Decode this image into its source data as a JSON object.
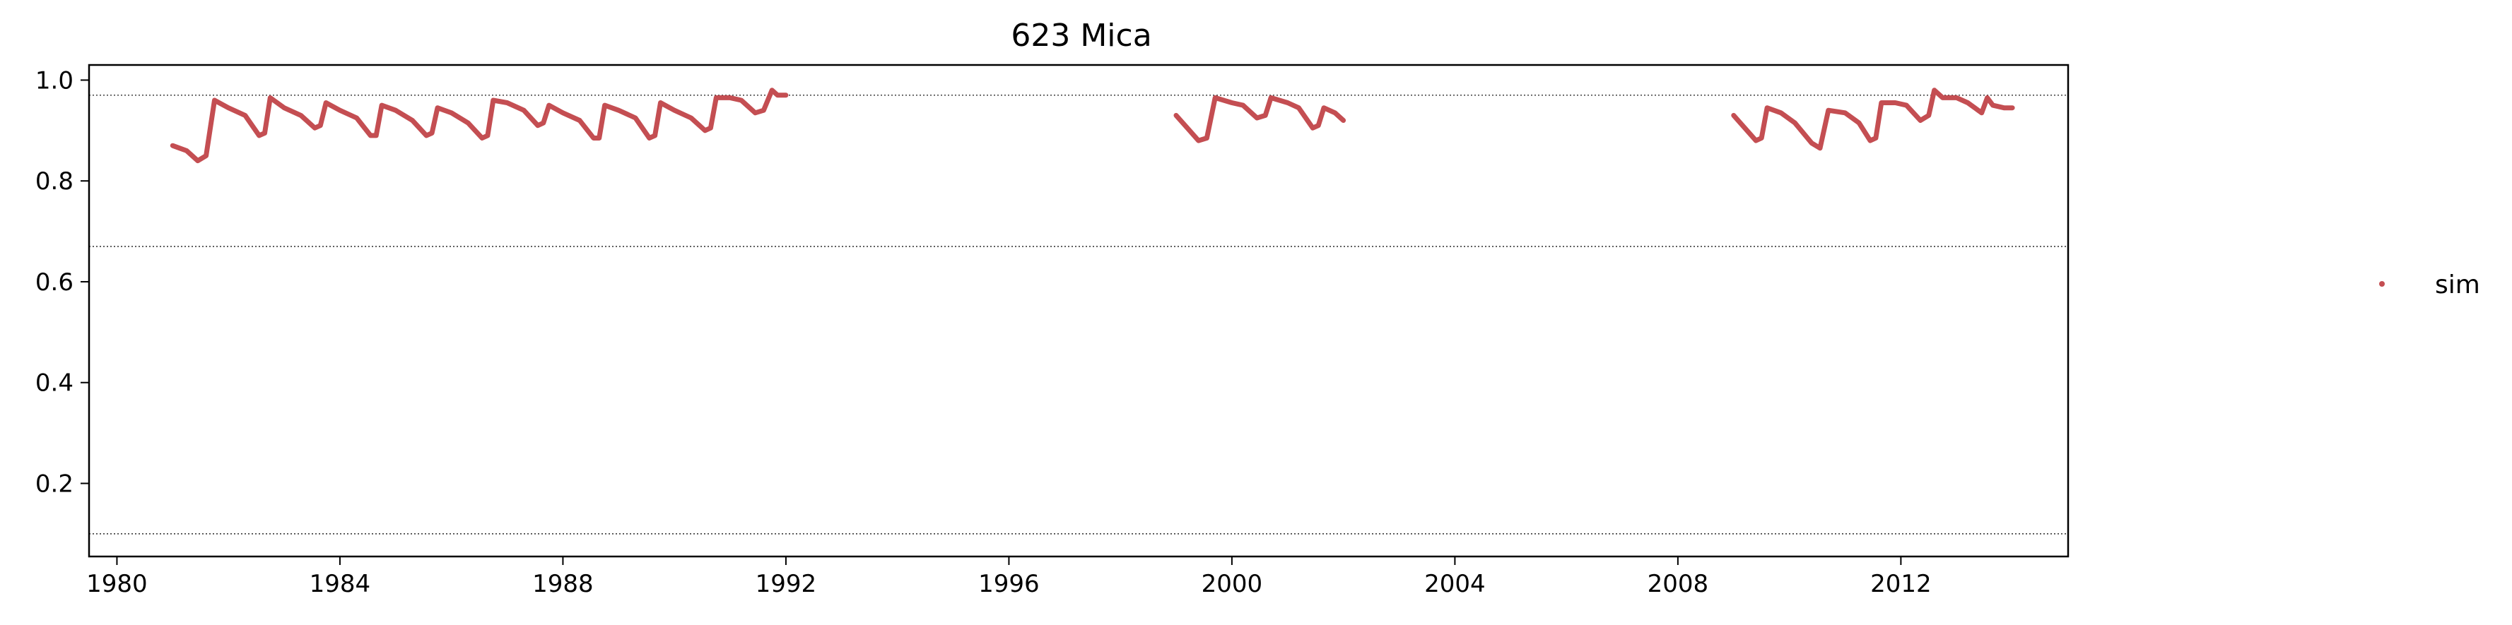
{
  "chart_data": {
    "type": "line",
    "title": "623  Mica",
    "xlabel": "",
    "ylabel": "",
    "xlim": [
      1979.5,
      2015.0
    ],
    "ylim": [
      0.055,
      1.03
    ],
    "x_ticks": [
      1980,
      1984,
      1988,
      1992,
      1996,
      2000,
      2004,
      2008,
      2012
    ],
    "y_ticks": [
      0.2,
      0.4,
      0.6,
      0.8,
      1.0
    ],
    "y_tick_labels": [
      "0.2",
      "0.4",
      "0.6",
      "0.8",
      "1.0"
    ],
    "reference_lines": [
      0.97,
      0.67,
      0.1
    ],
    "grid": false,
    "legend": {
      "placement": "right",
      "entries": [
        "sim"
      ]
    },
    "series": [
      {
        "name": "sim",
        "color": "#c44e52",
        "segments": [
          [
            [
              1981.0,
              0.87
            ],
            [
              1981.25,
              0.86
            ],
            [
              1981.45,
              0.84
            ],
            [
              1981.6,
              0.85
            ],
            [
              1981.75,
              0.96
            ],
            [
              1982.0,
              0.945
            ],
            [
              1982.3,
              0.93
            ],
            [
              1982.55,
              0.89
            ],
            [
              1982.65,
              0.895
            ],
            [
              1982.75,
              0.965
            ],
            [
              1983.0,
              0.945
            ],
            [
              1983.3,
              0.93
            ],
            [
              1983.55,
              0.905
            ],
            [
              1983.65,
              0.91
            ],
            [
              1983.75,
              0.955
            ],
            [
              1984.0,
              0.94
            ],
            [
              1984.3,
              0.925
            ],
            [
              1984.55,
              0.89
            ],
            [
              1984.65,
              0.89
            ],
            [
              1984.75,
              0.95
            ],
            [
              1985.0,
              0.94
            ],
            [
              1985.3,
              0.92
            ],
            [
              1985.55,
              0.89
            ],
            [
              1985.65,
              0.895
            ],
            [
              1985.75,
              0.945
            ],
            [
              1986.0,
              0.935
            ],
            [
              1986.3,
              0.915
            ],
            [
              1986.55,
              0.885
            ],
            [
              1986.65,
              0.89
            ],
            [
              1986.75,
              0.96
            ],
            [
              1987.0,
              0.955
            ],
            [
              1987.3,
              0.94
            ],
            [
              1987.55,
              0.91
            ],
            [
              1987.65,
              0.915
            ],
            [
              1987.75,
              0.95
            ],
            [
              1988.0,
              0.935
            ],
            [
              1988.3,
              0.92
            ],
            [
              1988.55,
              0.885
            ],
            [
              1988.65,
              0.885
            ],
            [
              1988.75,
              0.95
            ],
            [
              1989.0,
              0.94
            ],
            [
              1989.3,
              0.925
            ],
            [
              1989.55,
              0.885
            ],
            [
              1989.65,
              0.89
            ],
            [
              1989.75,
              0.955
            ],
            [
              1990.0,
              0.94
            ],
            [
              1990.3,
              0.925
            ],
            [
              1990.55,
              0.9
            ],
            [
              1990.65,
              0.905
            ],
            [
              1990.75,
              0.965
            ],
            [
              1991.0,
              0.965
            ],
            [
              1991.2,
              0.96
            ],
            [
              1991.45,
              0.935
            ],
            [
              1991.6,
              0.94
            ],
            [
              1991.75,
              0.98
            ],
            [
              1991.85,
              0.97
            ],
            [
              1992.0,
              0.97
            ]
          ],
          [
            [
              1999.0,
              0.93
            ],
            [
              1999.2,
              0.905
            ],
            [
              1999.4,
              0.88
            ],
            [
              1999.55,
              0.885
            ],
            [
              1999.7,
              0.965
            ],
            [
              2000.0,
              0.955
            ],
            [
              2000.2,
              0.95
            ],
            [
              2000.45,
              0.925
            ],
            [
              2000.6,
              0.93
            ],
            [
              2000.7,
              0.965
            ],
            [
              2001.0,
              0.955
            ],
            [
              2001.2,
              0.945
            ],
            [
              2001.45,
              0.905
            ],
            [
              2001.55,
              0.91
            ],
            [
              2001.65,
              0.945
            ],
            [
              2001.85,
              0.935
            ],
            [
              2002.0,
              0.92
            ]
          ],
          [
            [
              2009.0,
              0.93
            ],
            [
              2009.2,
              0.905
            ],
            [
              2009.4,
              0.88
            ],
            [
              2009.5,
              0.885
            ],
            [
              2009.6,
              0.945
            ],
            [
              2009.85,
              0.935
            ],
            [
              2010.1,
              0.915
            ],
            [
              2010.4,
              0.875
            ],
            [
              2010.55,
              0.865
            ],
            [
              2010.7,
              0.94
            ],
            [
              2011.0,
              0.935
            ],
            [
              2011.25,
              0.915
            ],
            [
              2011.45,
              0.88
            ],
            [
              2011.55,
              0.885
            ],
            [
              2011.65,
              0.955
            ],
            [
              2011.9,
              0.955
            ],
            [
              2012.1,
              0.95
            ],
            [
              2012.35,
              0.92
            ],
            [
              2012.5,
              0.93
            ],
            [
              2012.6,
              0.98
            ],
            [
              2012.75,
              0.965
            ],
            [
              2013.0,
              0.965
            ],
            [
              2013.2,
              0.955
            ],
            [
              2013.45,
              0.935
            ],
            [
              2013.55,
              0.965
            ],
            [
              2013.65,
              0.95
            ],
            [
              2013.85,
              0.945
            ],
            [
              2014.0,
              0.945
            ]
          ]
        ]
      }
    ]
  }
}
